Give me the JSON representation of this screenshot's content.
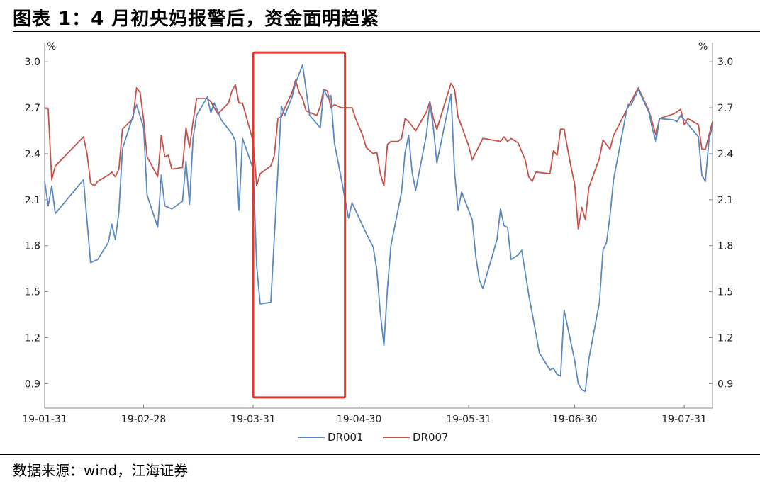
{
  "header": {
    "title": "图表 1：4 月初央妈报警后，资金面明趋紧"
  },
  "footer": {
    "source": "数据来源：wind，江海证券"
  },
  "colors": {
    "dr001": "#5b8ac0",
    "dr007": "#c8514a",
    "highlight": "#e8322a",
    "axis": "#888888"
  },
  "chart_data": {
    "type": "line",
    "title": "图表 1：4 月初央妈报警后，资金面明趋紧",
    "xlabel": "",
    "ylabel": "%",
    "ylabel_right": "%",
    "x_ticks": [
      "19-01-31",
      "19-02-28",
      "19-03-31",
      "19-04-30",
      "19-05-31",
      "19-06-30",
      "19-07-31"
    ],
    "y_ticks": [
      "3.0",
      "2.7",
      "2.4",
      "2.1",
      "1.8",
      "1.5",
      "1.2",
      "0.9"
    ],
    "ylim": [
      0.74,
      3.07
    ],
    "legend_position": "bottom-center",
    "highlight_box": {
      "from": "2019-03-31",
      "to": "2019-04-26",
      "ylow": 0.81,
      "yhigh": 3.06
    },
    "series": [
      {
        "name": "DR001",
        "points": [
          [
            "2019-01-31",
            2.22
          ],
          [
            "2019-02-01",
            2.06
          ],
          [
            "2019-02-02",
            2.19
          ],
          [
            "2019-02-03",
            2.01
          ],
          [
            "2019-02-11",
            2.23
          ],
          [
            "2019-02-13",
            1.69
          ],
          [
            "2019-02-15",
            1.71
          ],
          [
            "2019-02-18",
            1.82
          ],
          [
            "2019-02-19",
            1.94
          ],
          [
            "2019-02-20",
            1.84
          ],
          [
            "2019-02-21",
            2.02
          ],
          [
            "2019-02-22",
            2.43
          ],
          [
            "2019-02-26",
            2.72
          ],
          [
            "2019-02-28",
            2.57
          ],
          [
            "2019-03-01",
            2.13
          ],
          [
            "2019-03-04",
            1.92
          ],
          [
            "2019-03-05",
            2.26
          ],
          [
            "2019-03-06",
            2.06
          ],
          [
            "2019-03-08",
            2.04
          ],
          [
            "2019-03-11",
            2.09
          ],
          [
            "2019-03-12",
            2.35
          ],
          [
            "2019-03-13",
            2.07
          ],
          [
            "2019-03-14",
            2.5
          ],
          [
            "2019-03-15",
            2.65
          ],
          [
            "2019-03-18",
            2.77
          ],
          [
            "2019-03-19",
            2.67
          ],
          [
            "2019-03-20",
            2.73
          ],
          [
            "2019-03-22",
            2.62
          ],
          [
            "2019-03-25",
            2.53
          ],
          [
            "2019-03-26",
            2.48
          ],
          [
            "2019-03-27",
            2.03
          ],
          [
            "2019-03-28",
            2.5
          ],
          [
            "2019-03-31",
            2.3
          ],
          [
            "2019-04-01",
            1.67
          ],
          [
            "2019-04-02",
            1.42
          ],
          [
            "2019-04-05",
            1.43
          ],
          [
            "2019-04-08",
            2.71
          ],
          [
            "2019-04-09",
            2.65
          ],
          [
            "2019-04-11",
            2.77
          ],
          [
            "2019-04-12",
            2.86
          ],
          [
            "2019-04-14",
            2.98
          ],
          [
            "2019-04-16",
            2.65
          ],
          [
            "2019-04-19",
            2.57
          ],
          [
            "2019-04-20",
            2.82
          ],
          [
            "2019-04-21",
            2.77
          ],
          [
            "2019-04-22",
            2.78
          ],
          [
            "2019-04-23",
            2.47
          ],
          [
            "2019-04-25",
            2.23
          ],
          [
            "2019-04-27",
            1.98
          ],
          [
            "2019-04-28",
            2.08
          ],
          [
            "2019-05-02",
            1.88
          ],
          [
            "2019-05-04",
            1.79
          ],
          [
            "2019-05-05",
            1.64
          ],
          [
            "2019-05-06",
            1.36
          ],
          [
            "2019-05-07",
            1.15
          ],
          [
            "2019-05-08",
            1.52
          ],
          [
            "2019-05-09",
            1.8
          ],
          [
            "2019-05-12",
            2.15
          ],
          [
            "2019-05-13",
            2.41
          ],
          [
            "2019-05-14",
            2.52
          ],
          [
            "2019-05-15",
            2.28
          ],
          [
            "2019-05-16",
            2.16
          ],
          [
            "2019-05-19",
            2.52
          ],
          [
            "2019-05-20",
            2.73
          ],
          [
            "2019-05-21",
            2.57
          ],
          [
            "2019-05-22",
            2.34
          ],
          [
            "2019-05-26",
            2.79
          ],
          [
            "2019-05-27",
            2.28
          ],
          [
            "2019-05-28",
            2.03
          ],
          [
            "2019-05-29",
            2.15
          ],
          [
            "2019-06-01",
            1.97
          ],
          [
            "2019-06-02",
            1.73
          ],
          [
            "2019-06-03",
            1.58
          ],
          [
            "2019-06-04",
            1.52
          ],
          [
            "2019-06-08",
            1.84
          ],
          [
            "2019-06-09",
            2.04
          ],
          [
            "2019-06-10",
            1.93
          ],
          [
            "2019-06-11",
            1.92
          ],
          [
            "2019-06-12",
            1.71
          ],
          [
            "2019-06-14",
            1.74
          ],
          [
            "2019-06-15",
            1.77
          ],
          [
            "2019-06-17",
            1.48
          ],
          [
            "2019-06-19",
            1.23
          ],
          [
            "2019-06-20",
            1.1
          ],
          [
            "2019-06-23",
            0.99
          ],
          [
            "2019-06-24",
            1.0
          ],
          [
            "2019-06-25",
            0.96
          ],
          [
            "2019-06-26",
            0.95
          ],
          [
            "2019-06-27",
            1.38
          ],
          [
            "2019-06-28",
            1.27
          ],
          [
            "2019-06-30",
            1.05
          ],
          [
            "2019-07-01",
            0.9
          ],
          [
            "2019-07-02",
            0.86
          ],
          [
            "2019-07-03",
            0.85
          ],
          [
            "2019-07-04",
            1.06
          ],
          [
            "2019-07-07",
            1.43
          ],
          [
            "2019-07-08",
            1.77
          ],
          [
            "2019-07-09",
            1.82
          ],
          [
            "2019-07-10",
            2.0
          ],
          [
            "2019-07-11",
            2.23
          ],
          [
            "2019-07-15",
            2.72
          ],
          [
            "2019-07-16",
            2.72
          ],
          [
            "2019-07-18",
            2.82
          ],
          [
            "2019-07-21",
            2.67
          ],
          [
            "2019-07-22",
            2.56
          ],
          [
            "2019-07-23",
            2.48
          ],
          [
            "2019-07-24",
            2.63
          ],
          [
            "2019-07-28",
            2.62
          ],
          [
            "2019-07-29",
            2.61
          ],
          [
            "2019-07-30",
            2.65
          ],
          [
            "2019-08-04",
            2.51
          ],
          [
            "2019-08-05",
            2.26
          ],
          [
            "2019-08-06",
            2.22
          ],
          [
            "2019-08-07",
            2.49
          ],
          [
            "2019-08-08",
            2.58
          ]
        ]
      },
      {
        "name": "DR007",
        "points": [
          [
            "2019-01-31",
            2.7
          ],
          [
            "2019-02-01",
            2.69
          ],
          [
            "2019-02-02",
            2.23
          ],
          [
            "2019-02-03",
            2.32
          ],
          [
            "2019-02-11",
            2.51
          ],
          [
            "2019-02-12",
            2.4
          ],
          [
            "2019-02-13",
            2.21
          ],
          [
            "2019-02-14",
            2.19
          ],
          [
            "2019-02-15",
            2.22
          ],
          [
            "2019-02-18",
            2.26
          ],
          [
            "2019-02-19",
            2.28
          ],
          [
            "2019-02-20",
            2.25
          ],
          [
            "2019-02-21",
            2.3
          ],
          [
            "2019-02-22",
            2.56
          ],
          [
            "2019-02-25",
            2.63
          ],
          [
            "2019-02-26",
            2.83
          ],
          [
            "2019-02-27",
            2.8
          ],
          [
            "2019-02-28",
            2.62
          ],
          [
            "2019-03-01",
            2.38
          ],
          [
            "2019-03-04",
            2.25
          ],
          [
            "2019-03-05",
            2.52
          ],
          [
            "2019-03-06",
            2.38
          ],
          [
            "2019-03-07",
            2.39
          ],
          [
            "2019-03-08",
            2.3
          ],
          [
            "2019-03-11",
            2.31
          ],
          [
            "2019-03-12",
            2.57
          ],
          [
            "2019-03-13",
            2.44
          ],
          [
            "2019-03-14",
            2.61
          ],
          [
            "2019-03-15",
            2.76
          ],
          [
            "2019-03-18",
            2.76
          ],
          [
            "2019-03-19",
            2.74
          ],
          [
            "2019-03-20",
            2.7
          ],
          [
            "2019-03-21",
            2.66
          ],
          [
            "2019-03-24",
            2.73
          ],
          [
            "2019-03-25",
            2.81
          ],
          [
            "2019-03-26",
            2.85
          ],
          [
            "2019-03-27",
            2.73
          ],
          [
            "2019-03-28",
            2.73
          ],
          [
            "2019-03-31",
            2.48
          ],
          [
            "2019-04-01",
            2.19
          ],
          [
            "2019-04-02",
            2.27
          ],
          [
            "2019-04-05",
            2.32
          ],
          [
            "2019-04-06",
            2.39
          ],
          [
            "2019-04-07",
            2.63
          ],
          [
            "2019-04-08",
            2.64
          ],
          [
            "2019-04-09",
            2.7
          ],
          [
            "2019-04-11",
            2.8
          ],
          [
            "2019-04-12",
            2.88
          ],
          [
            "2019-04-13",
            2.8
          ],
          [
            "2019-04-14",
            2.76
          ],
          [
            "2019-04-15",
            2.68
          ],
          [
            "2019-04-18",
            2.65
          ],
          [
            "2019-04-19",
            2.71
          ],
          [
            "2019-04-20",
            2.82
          ],
          [
            "2019-04-21",
            2.81
          ],
          [
            "2019-04-22",
            2.7
          ],
          [
            "2019-04-23",
            2.72
          ],
          [
            "2019-04-25",
            2.7
          ],
          [
            "2019-04-27",
            2.7
          ],
          [
            "2019-04-28",
            2.7
          ],
          [
            "2019-04-29",
            2.63
          ],
          [
            "2019-05-01",
            2.52
          ],
          [
            "2019-05-02",
            2.44
          ],
          [
            "2019-05-04",
            2.4
          ],
          [
            "2019-05-05",
            2.41
          ],
          [
            "2019-05-06",
            2.27
          ],
          [
            "2019-05-07",
            2.19
          ],
          [
            "2019-05-08",
            2.46
          ],
          [
            "2019-05-09",
            2.48
          ],
          [
            "2019-05-11",
            2.48
          ],
          [
            "2019-05-12",
            2.5
          ],
          [
            "2019-05-13",
            2.63
          ],
          [
            "2019-05-14",
            2.61
          ],
          [
            "2019-05-16",
            2.55
          ],
          [
            "2019-05-19",
            2.67
          ],
          [
            "2019-05-20",
            2.74
          ],
          [
            "2019-05-21",
            2.63
          ],
          [
            "2019-05-22",
            2.56
          ],
          [
            "2019-05-26",
            2.86
          ],
          [
            "2019-05-27",
            2.82
          ],
          [
            "2019-05-28",
            2.64
          ],
          [
            "2019-05-29",
            2.58
          ],
          [
            "2019-05-31",
            2.45
          ],
          [
            "2019-06-01",
            2.36
          ],
          [
            "2019-06-04",
            2.5
          ],
          [
            "2019-06-09",
            2.48
          ],
          [
            "2019-06-10",
            2.51
          ],
          [
            "2019-06-11",
            2.48
          ],
          [
            "2019-06-12",
            2.5
          ],
          [
            "2019-06-14",
            2.47
          ],
          [
            "2019-06-16",
            2.36
          ],
          [
            "2019-06-17",
            2.25
          ],
          [
            "2019-06-18",
            2.22
          ],
          [
            "2019-06-19",
            2.28
          ],
          [
            "2019-06-23",
            2.27
          ],
          [
            "2019-06-24",
            2.42
          ],
          [
            "2019-06-25",
            2.39
          ],
          [
            "2019-06-26",
            2.56
          ],
          [
            "2019-06-27",
            2.56
          ],
          [
            "2019-06-28",
            2.43
          ],
          [
            "2019-06-29",
            2.31
          ],
          [
            "2019-06-30",
            2.2
          ],
          [
            "2019-07-01",
            1.91
          ],
          [
            "2019-07-02",
            2.05
          ],
          [
            "2019-07-03",
            1.97
          ],
          [
            "2019-07-04",
            2.18
          ],
          [
            "2019-07-07",
            2.37
          ],
          [
            "2019-07-08",
            2.49
          ],
          [
            "2019-07-09",
            2.46
          ],
          [
            "2019-07-10",
            2.43
          ],
          [
            "2019-07-11",
            2.52
          ],
          [
            "2019-07-15",
            2.7
          ],
          [
            "2019-07-18",
            2.83
          ],
          [
            "2019-07-21",
            2.68
          ],
          [
            "2019-07-22",
            2.6
          ],
          [
            "2019-07-23",
            2.52
          ],
          [
            "2019-07-24",
            2.63
          ],
          [
            "2019-07-28",
            2.66
          ],
          [
            "2019-07-30",
            2.69
          ],
          [
            "2019-07-31",
            2.59
          ],
          [
            "2019-08-01",
            2.63
          ],
          [
            "2019-08-04",
            2.59
          ],
          [
            "2019-08-05",
            2.43
          ],
          [
            "2019-08-06",
            2.43
          ],
          [
            "2019-08-08",
            2.61
          ]
        ]
      }
    ]
  }
}
